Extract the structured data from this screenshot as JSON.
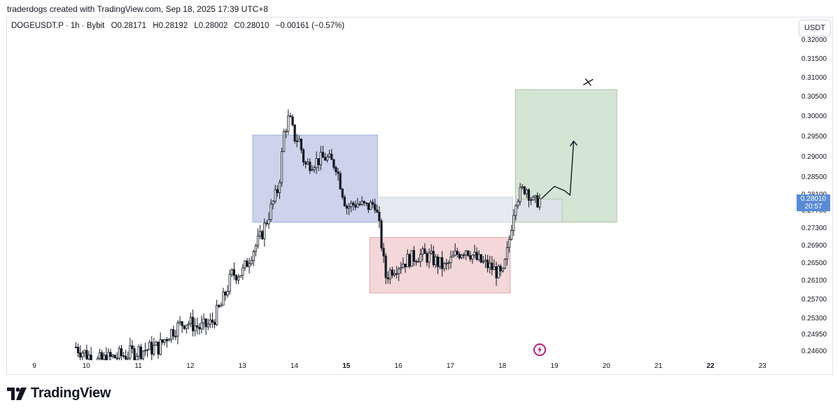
{
  "header": {
    "attribution": "traderdogs created with TradingView.com, Sep 18, 2025 17:39 UTC+8"
  },
  "legend": {
    "symbol": "DOGEUSDT.P · 1h · Bybit",
    "open": "O0.28171",
    "high": "H0.28192",
    "low": "L0.28002",
    "close": "C0.28010",
    "change": "−0.00161 (−0.57%)"
  },
  "currency_button": "USDT",
  "last_price": {
    "price": "0.28010",
    "countdown": "20:57"
  },
  "brand": {
    "name": "TradingView"
  },
  "icons": {
    "logo": "tradingview-logo-icon",
    "flash": "lightning-icon"
  },
  "colors": {
    "candle": "#131722",
    "blue_zone": "#b9c6e6",
    "gray_zone": "#dde1ea",
    "red_zone": "#efc9cc",
    "green_zone": "#c5dcc4",
    "price_tag": "#5b8bd6",
    "flash": "#b4207a"
  },
  "chart_data": {
    "type": "candlestick",
    "symbol": "DOGEUSDT.P",
    "interval": "1h",
    "exchange": "Bybit",
    "x_tick_labels": [
      "9",
      "10",
      "11",
      "12",
      "13",
      "14",
      "15",
      "16",
      "17",
      "18",
      "19",
      "20",
      "21",
      "22",
      "23"
    ],
    "bold_x_ticks": [
      "15",
      "22"
    ],
    "y_tick_labels": [
      "0.32000",
      "0.31500",
      "0.31000",
      "0.30500",
      "0.30000",
      "0.29500",
      "0.29000",
      "0.28500",
      "0.28100",
      "0.27700",
      "0.27300",
      "0.26900",
      "0.26500",
      "0.26100",
      "0.25700",
      "0.25300",
      "0.24950",
      "0.24600"
    ],
    "y_tick_values": [
      0.32,
      0.315,
      0.31,
      0.305,
      0.3,
      0.295,
      0.29,
      0.285,
      0.281,
      0.277,
      0.273,
      0.269,
      0.265,
      0.261,
      0.257,
      0.253,
      0.2495,
      0.246
    ],
    "xlim": [
      8.6,
      23.8
    ],
    "close_path": [
      [
        9.8,
        0.247
      ],
      [
        10.2,
        0.244
      ],
      [
        10.8,
        0.2455
      ],
      [
        11.0,
        0.2462
      ],
      [
        11.4,
        0.247
      ],
      [
        11.6,
        0.25
      ],
      [
        11.9,
        0.2525
      ],
      [
        12.2,
        0.251
      ],
      [
        12.4,
        0.252
      ],
      [
        12.6,
        0.256
      ],
      [
        12.8,
        0.2625
      ],
      [
        13.0,
        0.263
      ],
      [
        13.2,
        0.268
      ],
      [
        13.35,
        0.271
      ],
      [
        13.5,
        0.276
      ],
      [
        13.7,
        0.283
      ],
      [
        13.8,
        0.296
      ],
      [
        13.9,
        0.3
      ],
      [
        14.0,
        0.295
      ],
      [
        14.1,
        0.294
      ],
      [
        14.2,
        0.288
      ],
      [
        14.4,
        0.289
      ],
      [
        14.6,
        0.29
      ],
      [
        14.8,
        0.288
      ],
      [
        15.0,
        0.278
      ],
      [
        15.2,
        0.279
      ],
      [
        15.4,
        0.278
      ],
      [
        15.55,
        0.279
      ],
      [
        15.65,
        0.272
      ],
      [
        15.75,
        0.262
      ],
      [
        15.9,
        0.264
      ],
      [
        16.2,
        0.266
      ],
      [
        16.4,
        0.267
      ],
      [
        16.6,
        0.2665
      ],
      [
        16.9,
        0.264
      ],
      [
        17.1,
        0.267
      ],
      [
        17.3,
        0.2685
      ],
      [
        17.5,
        0.266
      ],
      [
        17.8,
        0.264
      ],
      [
        18.0,
        0.262
      ],
      [
        18.1,
        0.268
      ],
      [
        18.25,
        0.28
      ],
      [
        18.45,
        0.283
      ],
      [
        18.6,
        0.279
      ],
      [
        18.75,
        0.2801
      ]
    ],
    "zones": [
      {
        "name": "blue-box",
        "x": [
          13.2,
          15.6
        ],
        "y": [
          0.2745,
          0.2955
        ]
      },
      {
        "name": "gray-box",
        "x": [
          15.6,
          18.2
        ],
        "y": [
          0.2745,
          0.2805
        ]
      },
      {
        "name": "red-box",
        "x": [
          15.45,
          18.15
        ],
        "y": [
          0.2585,
          0.271
        ]
      },
      {
        "name": "green-box",
        "x": [
          18.25,
          20.2
        ],
        "y": [
          0.2745,
          0.307
        ]
      },
      {
        "name": "gray-box-right",
        "x": [
          18.25,
          19.15
        ],
        "y": [
          0.2745,
          0.28
        ]
      }
    ],
    "projection_path": [
      [
        18.75,
        0.2801
      ],
      [
        19.0,
        0.283
      ],
      [
        19.2,
        0.282
      ],
      [
        19.3,
        0.281
      ],
      [
        19.35,
        0.29
      ],
      [
        19.37,
        0.294
      ]
    ],
    "target_mark": {
      "x": 19.65,
      "y": 0.309
    }
  }
}
